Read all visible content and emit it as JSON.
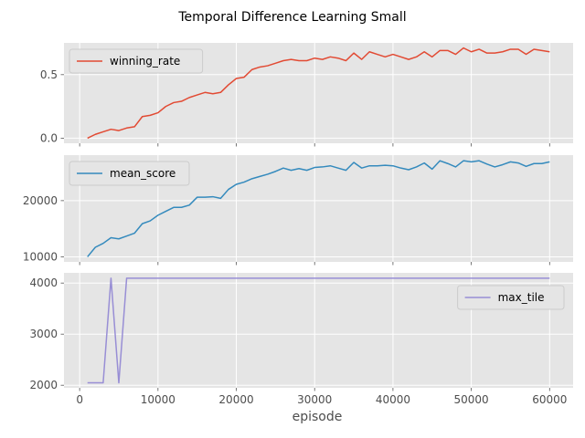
{
  "title": "Temporal Difference Learning Small",
  "chart_data": {
    "type": "line",
    "title": "Temporal Difference Learning Small",
    "xlabel": "episode",
    "shared_x_axis": true,
    "x": [
      1000,
      2000,
      3000,
      4000,
      5000,
      6000,
      7000,
      8000,
      9000,
      10000,
      11000,
      12000,
      13000,
      14000,
      15000,
      16000,
      17000,
      18000,
      19000,
      20000,
      21000,
      22000,
      23000,
      24000,
      25000,
      26000,
      27000,
      28000,
      29000,
      30000,
      31000,
      32000,
      33000,
      34000,
      35000,
      36000,
      37000,
      38000,
      39000,
      40000,
      41000,
      42000,
      43000,
      44000,
      45000,
      46000,
      47000,
      48000,
      49000,
      50000,
      51000,
      52000,
      53000,
      54000,
      55000,
      56000,
      57000,
      58000,
      59000,
      60000
    ],
    "xlim": [
      -2000,
      63000
    ],
    "xticks": [
      0,
      10000,
      20000,
      30000,
      40000,
      50000,
      60000
    ],
    "xtick_labels": [
      "0",
      "10000",
      "20000",
      "30000",
      "40000",
      "50000",
      "60000"
    ],
    "grid": true,
    "subplots": [
      {
        "series": [
          {
            "name": "winning_rate",
            "color": "#e24a33",
            "values": [
              0.0,
              0.03,
              0.05,
              0.07,
              0.06,
              0.08,
              0.09,
              0.17,
              0.18,
              0.2,
              0.25,
              0.28,
              0.29,
              0.32,
              0.34,
              0.36,
              0.35,
              0.36,
              0.42,
              0.47,
              0.48,
              0.54,
              0.56,
              0.57,
              0.59,
              0.61,
              0.62,
              0.61,
              0.61,
              0.63,
              0.62,
              0.64,
              0.63,
              0.61,
              0.67,
              0.62,
              0.68,
              0.66,
              0.64,
              0.66,
              0.64,
              0.62,
              0.64,
              0.68,
              0.64,
              0.69,
              0.69,
              0.66,
              0.71,
              0.68,
              0.7,
              0.67,
              0.67,
              0.68,
              0.7,
              0.7,
              0.66,
              0.7,
              0.69,
              0.68
            ]
          }
        ],
        "ylim": [
          -0.04,
          0.75
        ],
        "yticks": [
          0.0,
          0.5
        ],
        "ytick_labels": [
          "0.0",
          "0.5"
        ],
        "legend_position": "upper left"
      },
      {
        "series": [
          {
            "name": "mean_score",
            "color": "#348abd",
            "values": [
              10000,
              11700,
              12400,
              13400,
              13200,
              13700,
              14200,
              15900,
              16400,
              17400,
              18100,
              18800,
              18800,
              19200,
              20600,
              20600,
              20700,
              20400,
              22000,
              22900,
              23300,
              23900,
              24300,
              24700,
              25200,
              25800,
              25400,
              25700,
              25400,
              25900,
              26000,
              26200,
              25800,
              25400,
              26800,
              25800,
              26200,
              26200,
              26300,
              26200,
              25800,
              25500,
              26000,
              26700,
              25600,
              27100,
              26600,
              26000,
              27100,
              26900,
              27100,
              26500,
              26000,
              26400,
              26900,
              26700,
              26100,
              26600,
              26600,
              26900
            ]
          }
        ],
        "ylim": [
          9100,
          28100
        ],
        "yticks": [
          10000,
          20000
        ],
        "ytick_labels": [
          "10000",
          "20000"
        ],
        "legend_position": "upper left"
      },
      {
        "series": [
          {
            "name": "max_tile",
            "color": "#988ed5",
            "values": [
              2048,
              2048,
              2048,
              4096,
              2048,
              4096,
              4096,
              4096,
              4096,
              4096,
              4096,
              4096,
              4096,
              4096,
              4096,
              4096,
              4096,
              4096,
              4096,
              4096,
              4096,
              4096,
              4096,
              4096,
              4096,
              4096,
              4096,
              4096,
              4096,
              4096,
              4096,
              4096,
              4096,
              4096,
              4096,
              4096,
              4096,
              4096,
              4096,
              4096,
              4096,
              4096,
              4096,
              4096,
              4096,
              4096,
              4096,
              4096,
              4096,
              4096,
              4096,
              4096,
              4096,
              4096,
              4096,
              4096,
              4096,
              4096,
              4096,
              4096
            ]
          }
        ],
        "ylim": [
          1950,
          4200
        ],
        "yticks": [
          2000,
          3000,
          4000
        ],
        "ytick_labels": [
          "2000",
          "3000",
          "4000"
        ],
        "legend_position": "upper right"
      }
    ]
  }
}
